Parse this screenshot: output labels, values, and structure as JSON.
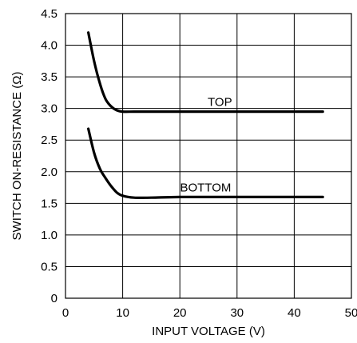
{
  "chart_data": {
    "type": "line",
    "xlabel": "INPUT VOLTAGE (V)",
    "ylabel": "SWITCH ON-RESISTANCE (Ω)",
    "xlim": [
      0,
      50
    ],
    "ylim": [
      0,
      4.5
    ],
    "x_ticks": [
      "0",
      "10",
      "20",
      "30",
      "40",
      "50"
    ],
    "y_ticks": [
      "0",
      "0.5",
      "1.0",
      "1.5",
      "2.0",
      "2.5",
      "3.0",
      "3.5",
      "4.0",
      "4.5"
    ],
    "grid": true,
    "series": [
      {
        "name": "TOP",
        "x": [
          4,
          5,
          6,
          7,
          8,
          9,
          10,
          12,
          15,
          20,
          30,
          40,
          45
        ],
        "y": [
          4.2,
          3.75,
          3.4,
          3.15,
          3.03,
          2.97,
          2.95,
          2.95,
          2.95,
          2.95,
          2.95,
          2.95,
          2.95
        ]
      },
      {
        "name": "BOTTOM",
        "x": [
          4,
          5,
          6,
          7,
          8,
          9,
          10,
          12,
          15,
          20,
          30,
          40,
          45
        ],
        "y": [
          2.68,
          2.3,
          2.05,
          1.9,
          1.77,
          1.67,
          1.62,
          1.59,
          1.59,
          1.6,
          1.6,
          1.6,
          1.6
        ]
      }
    ]
  }
}
